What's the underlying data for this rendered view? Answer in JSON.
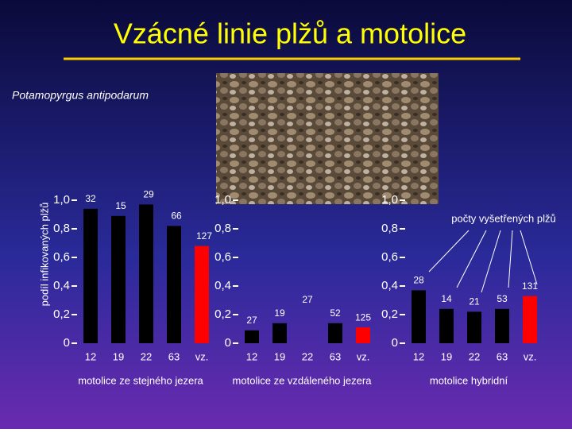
{
  "title": "Vzácné linie plžů a motolice",
  "subtitle": "Potamopyrgus antipodarum",
  "ylabel": "podíl infikovaných plžů",
  "annotation": "počty vyšetřených plžů",
  "chart_data": [
    {
      "type": "bar",
      "xlabel": "motolice ze stejného jezera",
      "categories": [
        "12",
        "19",
        "22",
        "63",
        "vz."
      ],
      "values": [
        0.94,
        0.89,
        0.97,
        0.82,
        0.68
      ],
      "sample_sizes": [
        32,
        15,
        29,
        66,
        127
      ],
      "colors": [
        "#000000",
        "#000000",
        "#000000",
        "#000000",
        "#ff0000"
      ],
      "ylim": [
        0,
        1
      ],
      "yticks": [
        0,
        {
          "value": 0.2,
          "label": "0,2"
        },
        {
          "value": 0.4,
          "label": "0,4"
        },
        {
          "value": 0.6,
          "label": "0,6"
        },
        {
          "value": 0.8,
          "label": "0,8"
        },
        {
          "value": 1,
          "label": "1,0"
        }
      ]
    },
    {
      "type": "bar",
      "xlabel": "motolice ze vzdáleného jezera",
      "categories": [
        "12",
        "19",
        "22",
        "63",
        "vz."
      ],
      "values": [
        0.09,
        0.14,
        null,
        0.14,
        0.11
      ],
      "sample_sizes": [
        27,
        19,
        27,
        52,
        125
      ],
      "colors": [
        "#000000",
        "#000000",
        "#000000",
        "#000000",
        "#ff0000"
      ],
      "ylim": [
        0,
        1
      ],
      "yticks": [
        0,
        {
          "value": 0.2,
          "label": "0,2"
        },
        {
          "value": 0.4,
          "label": "0,4"
        },
        {
          "value": 0.6,
          "label": "0,6"
        },
        {
          "value": 0.8,
          "label": "0,8"
        },
        {
          "value": 1,
          "label": "1,0"
        }
      ]
    },
    {
      "type": "bar",
      "xlabel": "motolice hybridní",
      "categories": [
        "12",
        "19",
        "22",
        "63",
        "vz."
      ],
      "values": [
        0.37,
        0.24,
        0.22,
        0.24,
        0.33
      ],
      "sample_sizes": [
        28,
        14,
        21,
        53,
        131
      ],
      "colors": [
        "#000000",
        "#000000",
        "#000000",
        "#000000",
        "#ff0000"
      ],
      "ylim": [
        0,
        1
      ],
      "yticks": [
        0,
        {
          "value": 0.2,
          "label": "0,2"
        },
        {
          "value": 0.4,
          "label": "0,4"
        },
        {
          "value": 0.6,
          "label": "0,6"
        },
        {
          "value": 0.8,
          "label": "0,8"
        },
        {
          "value": 1,
          "label": "1,0"
        }
      ]
    }
  ]
}
